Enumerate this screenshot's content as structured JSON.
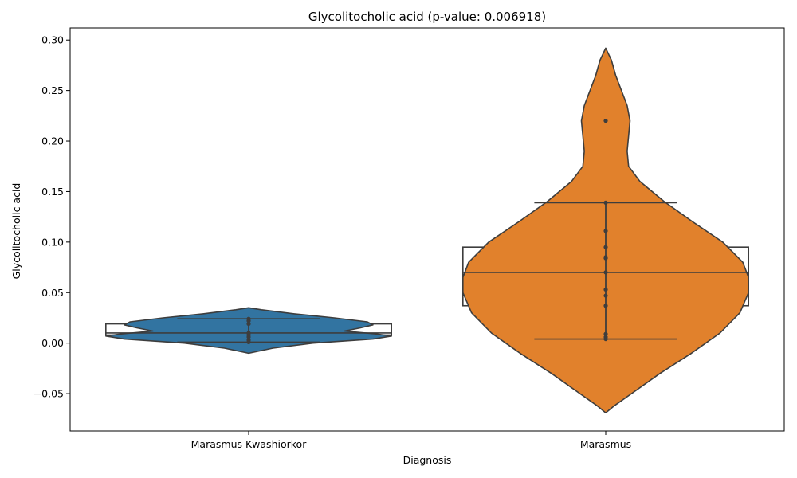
{
  "chart_data": {
    "type": "violin",
    "title": "Glycolitocholic acid (p-value: 0.006918)",
    "xlabel": "Diagnosis",
    "ylabel": "Glycolitocholic acid",
    "ylim": [
      -0.087,
      0.312
    ],
    "yticks": [
      -0.05,
      0.0,
      0.05,
      0.1,
      0.15,
      0.2,
      0.25,
      0.3
    ],
    "ytick_labels": [
      "−0.05",
      "0.00",
      "0.05",
      "0.10",
      "0.15",
      "0.20",
      "0.25",
      "0.30"
    ],
    "categories": [
      "Marasmus Kwashiorkor",
      "Marasmus"
    ],
    "grid": false,
    "series": [
      {
        "category": "Marasmus Kwashiorkor",
        "color": "#3274a1",
        "points": [
          0.001,
          0.003,
          0.006,
          0.008,
          0.01,
          0.019,
          0.022,
          0.024
        ],
        "box": {
          "q1": 0.008,
          "median": 0.01,
          "q3": 0.019,
          "whisker_low": 0.001,
          "whisker_high": 0.024
        },
        "density": [
          [
            -0.01,
            0.0
          ],
          [
            -0.005,
            0.17
          ],
          [
            0.0,
            0.45
          ],
          [
            0.004,
            0.87
          ],
          [
            0.007,
            1.0
          ],
          [
            0.009,
            0.9
          ],
          [
            0.012,
            0.67
          ],
          [
            0.015,
            0.78
          ],
          [
            0.018,
            0.87
          ],
          [
            0.021,
            0.83
          ],
          [
            0.025,
            0.6
          ],
          [
            0.029,
            0.32
          ],
          [
            0.033,
            0.09
          ],
          [
            0.035,
            0.0
          ]
        ]
      },
      {
        "category": "Marasmus",
        "color": "#e1812c",
        "points": [
          0.004,
          0.006,
          0.009,
          0.037,
          0.047,
          0.053,
          0.07,
          0.084,
          0.085,
          0.095,
          0.111,
          0.139,
          0.22
        ],
        "box": {
          "q1": 0.037,
          "median": 0.07,
          "q3": 0.095,
          "whisker_low": 0.004,
          "whisker_high": 0.139
        },
        "density": [
          [
            -0.069,
            0.0
          ],
          [
            -0.062,
            0.06
          ],
          [
            -0.05,
            0.18
          ],
          [
            -0.03,
            0.38
          ],
          [
            -0.01,
            0.6
          ],
          [
            0.01,
            0.8
          ],
          [
            0.03,
            0.94
          ],
          [
            0.05,
            1.0
          ],
          [
            0.065,
            1.0
          ],
          [
            0.08,
            0.96
          ],
          [
            0.1,
            0.82
          ],
          [
            0.12,
            0.61
          ],
          [
            0.14,
            0.41
          ],
          [
            0.16,
            0.24
          ],
          [
            0.175,
            0.16
          ],
          [
            0.19,
            0.15
          ],
          [
            0.205,
            0.16
          ],
          [
            0.22,
            0.17
          ],
          [
            0.235,
            0.15
          ],
          [
            0.25,
            0.11
          ],
          [
            0.265,
            0.07
          ],
          [
            0.28,
            0.04
          ],
          [
            0.292,
            0.0
          ]
        ]
      }
    ]
  }
}
